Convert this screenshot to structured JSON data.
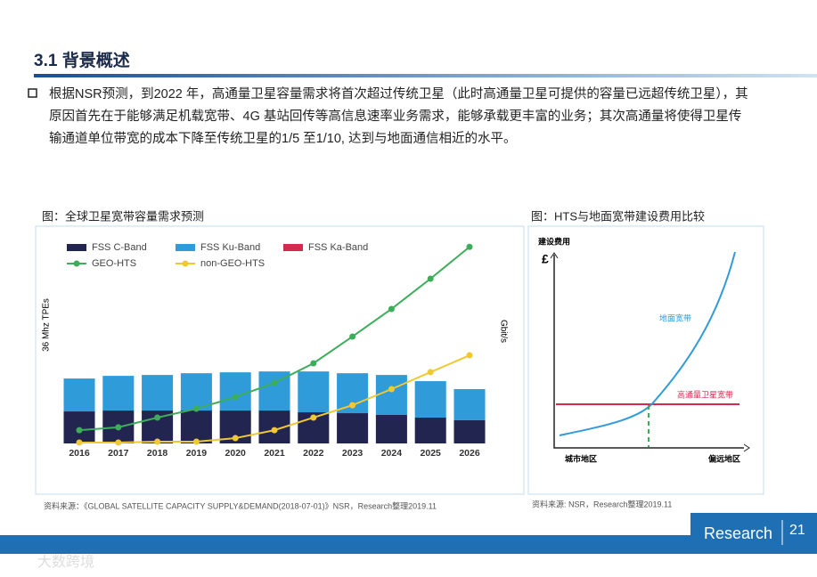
{
  "header": {
    "title": "3.1 背景概述"
  },
  "body": "根据NSR预测，到2022 年，高通量卫星容量需求将首次超过传统卫星（此时高通量卫星可提供的容量已远超传统卫星），其原因首先在于能够满足机载宽带、4G 基站回传等高信息速率业务需求，能够承载更丰富的业务；其次高通量将使得卫星传输通道单位带宽的成本下降至传统卫星的1/5 至1/10, 达到与地面通信相近的水平。",
  "chart_data": {
    "type": "bar-line",
    "title": "图：全球卫星宽带容量需求预测",
    "y_label": "36 Mhz TPEs",
    "y2_label": "Gbit/s",
    "categories": [
      "2016",
      "2017",
      "2018",
      "2019",
      "2020",
      "2021",
      "2022",
      "2023",
      "2024",
      "2025",
      "2026"
    ],
    "ylim": [
      0,
      100
    ],
    "y2lim": [
      0,
      100
    ],
    "series": [
      {
        "name": "FSS C-Band",
        "kind": "bar",
        "color": "#232551",
        "values": [
          14.5,
          14.9,
          14.9,
          14.9,
          14.9,
          14.9,
          14.1,
          13.7,
          12.9,
          11.7,
          10.5
        ]
      },
      {
        "name": "FSS Ku-Band",
        "kind": "bar",
        "color": "#2f9bd9",
        "values": [
          14.9,
          15.7,
          16.1,
          16.9,
          17.3,
          17.7,
          18.5,
          18.1,
          18.1,
          16.5,
          14.1
        ]
      },
      {
        "name": "FSS Ka-Band",
        "kind": "bar",
        "color": "#d6294f",
        "values": [
          0,
          0,
          0,
          0,
          0,
          0,
          0,
          0,
          0,
          0,
          0
        ]
      },
      {
        "name": "GEO-HTS",
        "kind": "line",
        "axis": "y2",
        "color": "#3cae5a",
        "values": [
          6,
          7.3,
          11.7,
          15.7,
          21,
          27.4,
          36.3,
          48.4,
          60.9,
          74.6,
          89
        ]
      },
      {
        "name": "non-GEO-HTS",
        "kind": "line",
        "axis": "y2",
        "color": "#f0c832",
        "values": [
          0.4,
          0.4,
          0.8,
          0.8,
          2.4,
          6,
          11.7,
          17.3,
          24.6,
          32.3,
          39.9
        ]
      }
    ],
    "source": "资料来源：《GLOBAL SATELLITE CAPACITY SUPPLY&DEMAND(2018-07-01)》NSR，Research整理2019.11"
  },
  "figure2": {
    "title": "图：HTS与地面宽带建设费用比较",
    "y_label": "建设费用",
    "y_unit": "£",
    "curve_label": "地面宽带",
    "line_label": "高通量卫星宽带",
    "x_start": "城市地区",
    "x_end": "偏远地区",
    "source": "资料来源: NSR，Research整理2019.11"
  },
  "footer": {
    "logo": "Research",
    "page": "21",
    "watermark": "大数跨境"
  }
}
